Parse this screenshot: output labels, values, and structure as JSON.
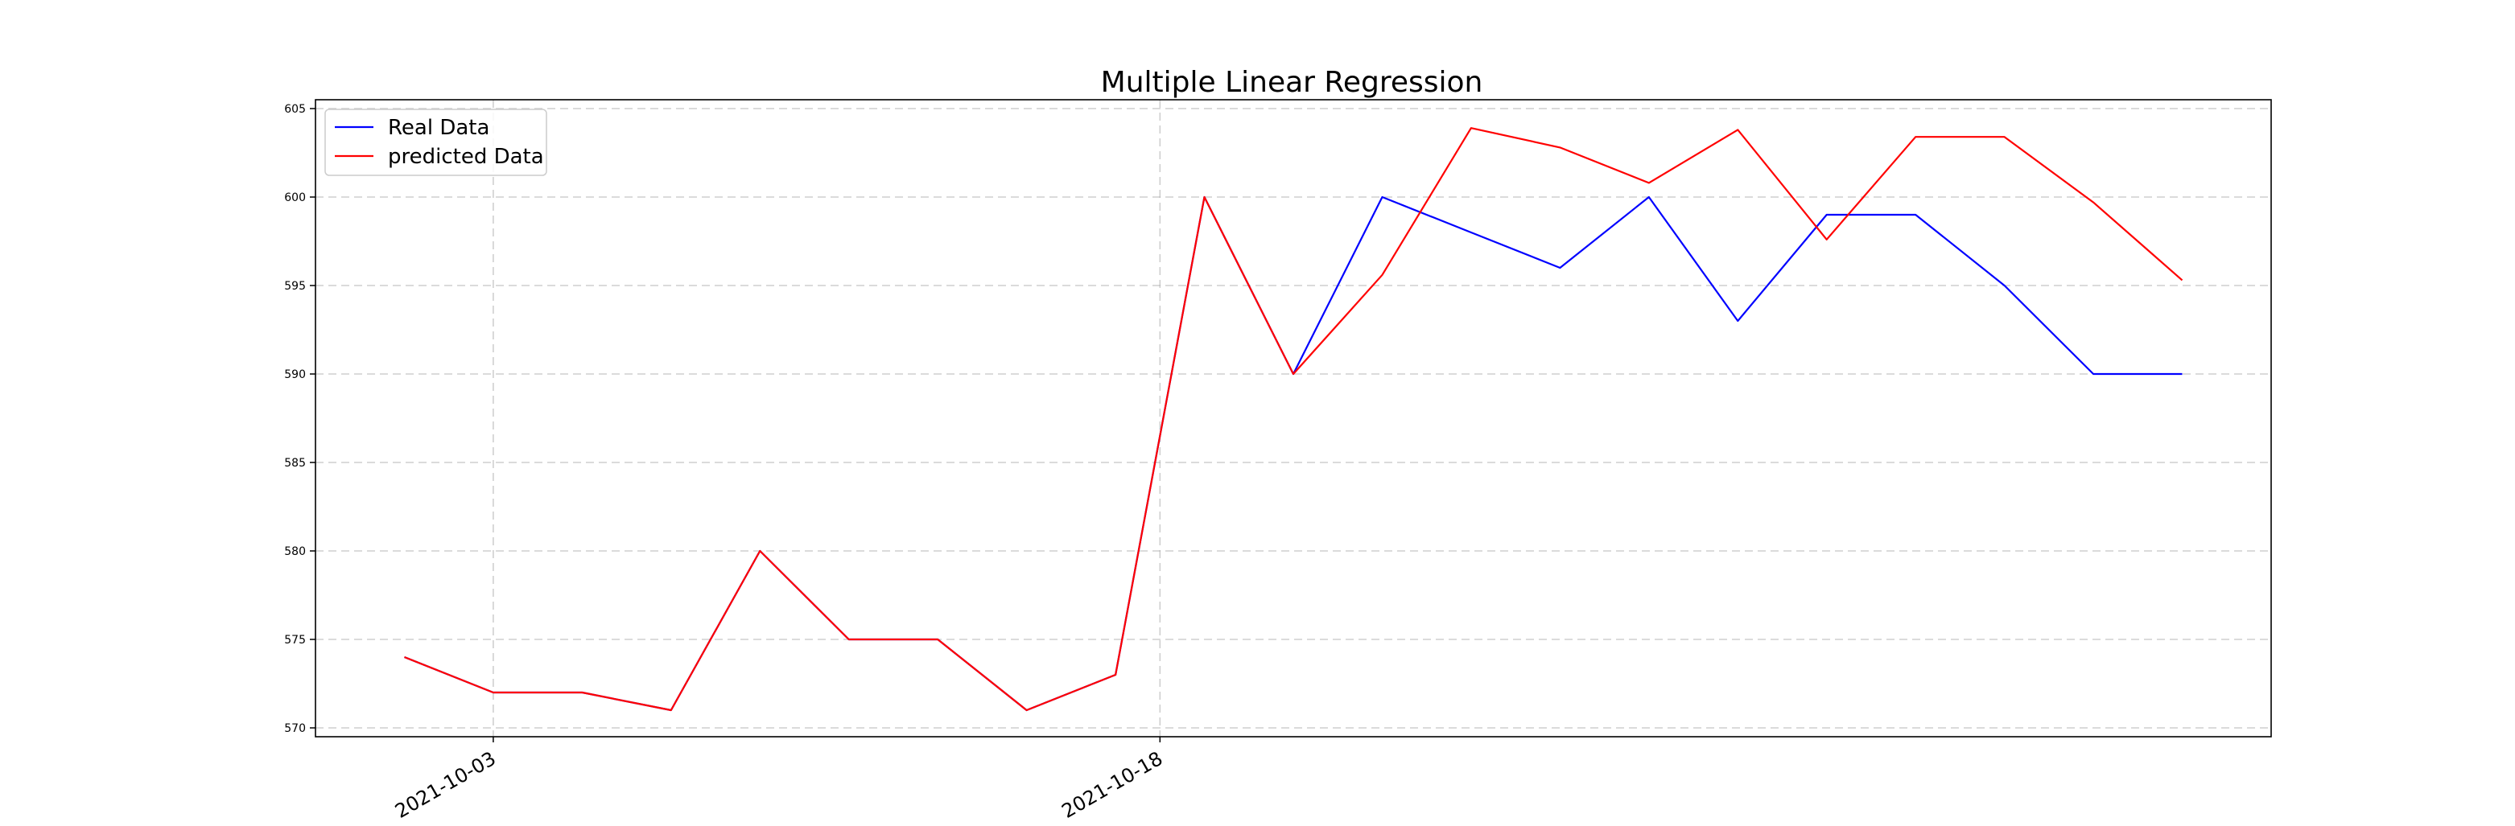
{
  "chart_data": {
    "type": "line",
    "title": "Multiple Linear Regression",
    "xlabel": "",
    "ylabel": "",
    "x": [
      "2021-10-01",
      "2021-10-03",
      "2021-10-05",
      "2021-10-07",
      "2021-10-09",
      "2021-10-11",
      "2021-10-13",
      "2021-10-15",
      "2021-10-17",
      "2021-10-19",
      "2021-10-21",
      "2021-10-23",
      "2021-10-25",
      "2021-10-27",
      "2021-10-29",
      "2021-10-31",
      "2021-11-02",
      "2021-11-04",
      "2021-11-06",
      "2021-11-08",
      "2021-11-10"
    ],
    "x_ticks": [
      "2021-10-03",
      "2021-10-18"
    ],
    "ylim": [
      569.5,
      605.5
    ],
    "y_ticks": [
      570,
      575,
      580,
      585,
      590,
      595,
      600,
      605
    ],
    "grid": true,
    "legend_position": "top-left",
    "series": [
      {
        "name": "Real Data",
        "color": "#0000ff",
        "values": [
          574,
          572,
          572,
          571,
          580,
          575,
          575,
          571,
          573,
          600,
          590,
          600,
          598,
          596,
          600,
          593,
          599,
          599,
          595,
          590,
          590
        ]
      },
      {
        "name": "predicted Data",
        "color": "#ff0000",
        "values": [
          574,
          572,
          572,
          571,
          580,
          575,
          575,
          571,
          573,
          600,
          590,
          595.6,
          603.9,
          602.8,
          600.8,
          603.8,
          597.6,
          603.4,
          603.4,
          599.7,
          595.3
        ]
      }
    ]
  }
}
